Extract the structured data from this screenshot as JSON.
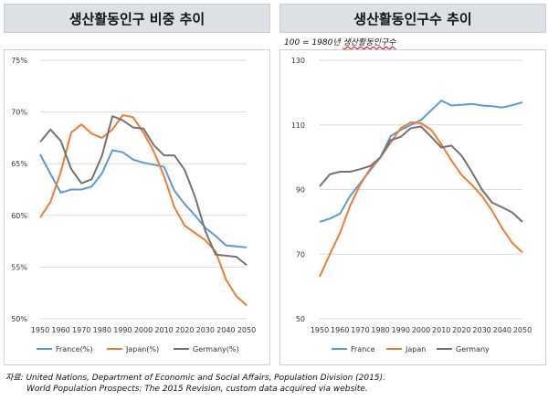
{
  "panels": {
    "left": {
      "title": "생산활동인구 비중 추이"
    },
    "right": {
      "title": "생산활동인구수 추이",
      "note_prefix": "100 = 1980년 ",
      "note_underlined": "생산활동인구수"
    }
  },
  "source": {
    "line1": "자료: United Nations, Department of Economic and Social Affairs, Population Division (2015).",
    "line2": "World Population Prospects: The 2015 Revision, custom data acquired via website."
  },
  "chart_data": [
    {
      "type": "line",
      "title": "생산활동인구 비중 추이",
      "x": [
        1950,
        1955,
        1960,
        1965,
        1970,
        1975,
        1980,
        1985,
        1990,
        1995,
        2000,
        2005,
        2010,
        2015,
        2020,
        2025,
        2030,
        2035,
        2040,
        2045,
        2050
      ],
      "x_ticks": [
        "1950",
        "1960",
        "1970",
        "1980",
        "1990",
        "2000",
        "2010",
        "2020",
        "2030",
        "2040",
        "2050"
      ],
      "y_ticks": [
        "50%",
        "55%",
        "60%",
        "65%",
        "70%",
        "75%"
      ],
      "ylim": [
        50,
        75
      ],
      "grid": true,
      "legend_position": "bottom",
      "series": [
        {
          "name": "France(%)",
          "color": "#5b9bd5",
          "values": [
            65.9,
            64.0,
            62.2,
            62.5,
            62.5,
            62.8,
            64.1,
            66.3,
            66.1,
            65.4,
            65.1,
            64.9,
            64.7,
            62.4,
            61.1,
            60.0,
            58.8,
            58.0,
            57.1,
            57.0,
            56.9
          ]
        },
        {
          "name": "Japan(%)",
          "color": "#ed7d31",
          "values": [
            59.8,
            61.3,
            64.2,
            68.0,
            68.8,
            67.9,
            67.5,
            68.3,
            69.7,
            69.5,
            68.0,
            66.2,
            63.8,
            60.8,
            59.0,
            58.3,
            57.6,
            56.5,
            53.8,
            52.2,
            51.3
          ]
        },
        {
          "name": "Germany(%)",
          "color": "#767171",
          "values": [
            67.1,
            68.3,
            67.2,
            64.5,
            63.1,
            63.5,
            65.8,
            69.6,
            69.2,
            68.5,
            68.4,
            66.8,
            65.8,
            65.8,
            64.4,
            61.8,
            58.5,
            56.2,
            56.1,
            56.0,
            55.2
          ]
        }
      ]
    },
    {
      "type": "line",
      "title": "생산활동인구수 추이",
      "x": [
        1950,
        1955,
        1960,
        1965,
        1970,
        1975,
        1980,
        1985,
        1990,
        1995,
        2000,
        2005,
        2010,
        2015,
        2020,
        2025,
        2030,
        2035,
        2040,
        2045,
        2050
      ],
      "x_ticks": [
        "1950",
        "1960",
        "1970",
        "1980",
        "1990",
        "2000",
        "2010",
        "2020",
        "2030",
        "2040",
        "2050"
      ],
      "y_ticks": [
        "50",
        "70",
        "90",
        "110",
        "130"
      ],
      "ylim": [
        50,
        130
      ],
      "grid": true,
      "legend_position": "bottom",
      "series": [
        {
          "name": "France",
          "color": "#5b9bd5",
          "values": [
            80.0,
            81.0,
            82.5,
            88.0,
            92.0,
            96.0,
            100.0,
            106.5,
            108.5,
            110.0,
            111.5,
            114.5,
            117.5,
            116.0,
            116.2,
            116.5,
            116.0,
            115.8,
            115.4,
            116.1,
            117.0
          ]
        },
        {
          "name": "Japan",
          "color": "#ed7d31",
          "values": [
            63.0,
            70.0,
            76.5,
            85.0,
            91.5,
            96.5,
            100.0,
            104.5,
            109.0,
            110.8,
            110.5,
            108.5,
            104.0,
            99.0,
            94.5,
            91.5,
            88.0,
            83.5,
            78.0,
            73.5,
            70.5
          ]
        },
        {
          "name": "Germany",
          "color": "#767171",
          "values": [
            91.0,
            94.7,
            95.5,
            95.5,
            96.3,
            97.3,
            100.0,
            105.3,
            106.3,
            109.0,
            109.5,
            106.3,
            103.0,
            103.6,
            100.5,
            95.5,
            90.0,
            86.0,
            84.5,
            82.9,
            80.0
          ]
        }
      ]
    }
  ]
}
